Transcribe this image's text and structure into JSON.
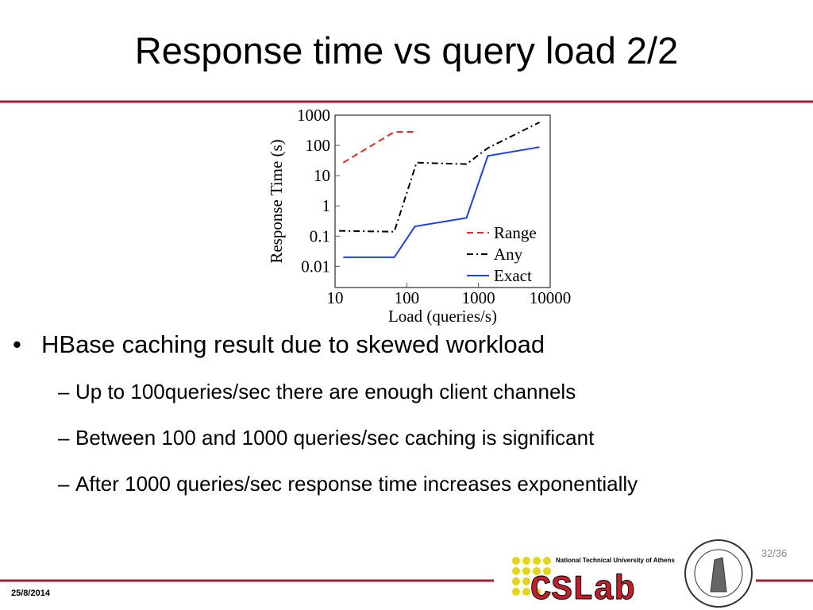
{
  "slide": {
    "title": "Response time vs query load 2/2",
    "bullets": [
      {
        "text": "HBase caching result due to skewed workload",
        "level": 1
      },
      {
        "text": "Up to 100queries/sec there are enough client channels",
        "level": 2
      },
      {
        "text": "Between 100 and 1000 queries/sec caching is significant",
        "level": 2
      },
      {
        "text": "After 1000 queries/sec response time increases exponentially",
        "level": 2
      }
    ],
    "date": "25/8/2014",
    "page": "32/36",
    "logo": {
      "name": "CSLab",
      "university": "National Technical University of Athens"
    }
  },
  "chart_data": {
    "type": "line",
    "xlabel": "Load (queries/s)",
    "ylabel": "Response Time (s)",
    "xscale": "log",
    "yscale": "log",
    "xlim": [
      10,
      10000
    ],
    "xticks": [
      10,
      100,
      1000,
      10000
    ],
    "ylim": [
      0.002,
      1000
    ],
    "yticks": [
      0.01,
      0.1,
      1,
      10,
      100,
      1000
    ],
    "legend": "lower right",
    "series": [
      {
        "name": "Range",
        "color": "#e8262b",
        "linestyle": "dashed",
        "x": [
          13,
          67,
          130
        ],
        "values": [
          27,
          280,
          280
        ]
      },
      {
        "name": "Any",
        "color": "#000000",
        "linestyle": "dashdot",
        "x": [
          11.4,
          67,
          137,
          680,
          1350,
          7100
        ],
        "values": [
          0.15,
          0.14,
          27,
          24,
          82,
          580
        ]
      },
      {
        "name": "Exact",
        "color": "#1f3ff0",
        "linestyle": "solid",
        "x": [
          13,
          67,
          130,
          680,
          1350,
          7100
        ],
        "values": [
          0.02,
          0.02,
          0.21,
          0.4,
          45,
          88
        ]
      }
    ]
  }
}
